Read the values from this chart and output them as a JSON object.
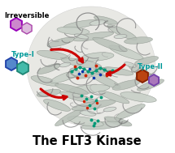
{
  "title": "The FLT3 Kinase",
  "title_fontsize": 10.5,
  "bg_color": "#ffffff",
  "labels": {
    "irreversible": "Irreversible",
    "type1": "Type-I",
    "type2": "Type-II"
  },
  "label_fontsize": 6.0,
  "type1_label_color": "#009999",
  "type2_label_color": "#009999",
  "irrev_label_color": "#000000",
  "title_color": "#000000",
  "irrev_hex1": {
    "fc": "#cc88cc",
    "ec": "#9900bb",
    "lw": 1.4
  },
  "irrev_hex2": {
    "fc": "#ddbbdd",
    "ec": "#aa44aa",
    "lw": 1.0
  },
  "type1_hex1": {
    "fc": "#5588cc",
    "ec": "#2244aa",
    "lw": 1.4
  },
  "type1_hex2": {
    "fc": "#44bbaa",
    "ec": "#228877",
    "lw": 1.4
  },
  "type2_hex1": {
    "fc": "#bb4411",
    "ec": "#882200",
    "lw": 1.4
  },
  "type2_hex2": {
    "fc": "#aa77bb",
    "ec": "#7744aa",
    "lw": 1.4
  },
  "arrow_color": "#cc0000",
  "arrow_lw": 2.2
}
